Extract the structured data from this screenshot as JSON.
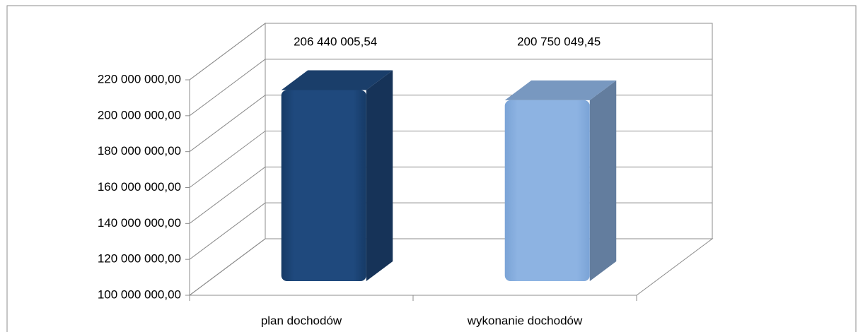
{
  "chart_data": {
    "type": "bar3d",
    "categories": [
      "plan dochodów",
      "wykonanie dochodów"
    ],
    "values": [
      206440005.54,
      200750049.45
    ],
    "value_labels": [
      "206 440 005,54",
      "200 750 049,45"
    ],
    "colors": [
      "#1f497d",
      "#8db3e2"
    ],
    "ylim": [
      100000000,
      220000000
    ],
    "yticks": [
      {
        "value": 100000000,
        "label": "100 000 000,00"
      },
      {
        "value": 120000000,
        "label": "120 000 000,00"
      },
      {
        "value": 140000000,
        "label": "140 000 000,00"
      },
      {
        "value": 160000000,
        "label": "160 000 000,00"
      },
      {
        "value": 180000000,
        "label": "180 000 000,00"
      },
      {
        "value": 200000000,
        "label": "200 000 000,00"
      },
      {
        "value": 220000000,
        "label": "220 000 000,00"
      }
    ],
    "grid": true
  }
}
